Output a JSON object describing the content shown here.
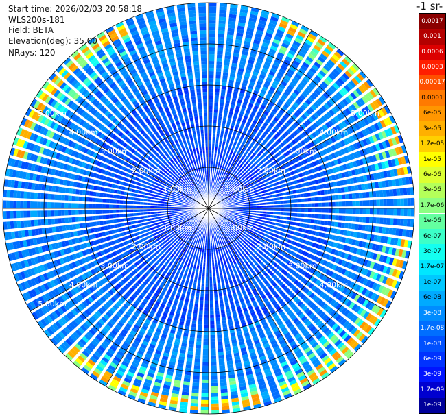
{
  "header": {
    "start_time": "Start time: 2026/02/03 20:58:18",
    "instrument": "WLS200s-181",
    "field": "Field: BETA",
    "elevation": "Elevation(deg): 35.00",
    "nrays": "NRays: 120"
  },
  "colorbar": {
    "units_label": "-1 sr-",
    "labels": [
      "0.0017",
      "0.001",
      "0.0006",
      "0.0003",
      "0.00017",
      "0.0001",
      "6e-05",
      "3e-05",
      "1.7e-05",
      "1e-05",
      "6e-06",
      "3e-06",
      "1.7e-06",
      "1e-06",
      "6e-07",
      "3e-07",
      "1.7e-07",
      "1e-07",
      "6e-08",
      "3e-08",
      "1.7e-08",
      "1e-08",
      "6e-09",
      "3e-09",
      "1.7e-09",
      "1e-09"
    ],
    "colors": [
      "#8b0000",
      "#b40000",
      "#dc0000",
      "#ff1e00",
      "#ff5000",
      "#ff7a00",
      "#ff9600",
      "#ffb000",
      "#ffd000",
      "#ffff00",
      "#dcff32",
      "#b4ff5a",
      "#8cff82",
      "#64ffa0",
      "#3cffc8",
      "#14fff0",
      "#00e6ff",
      "#00c8ff",
      "#00aaff",
      "#008cff",
      "#006eff",
      "#0050ff",
      "#0032ff",
      "#0014ff",
      "#0000d0",
      "#00009a"
    ]
  },
  "chart_data": {
    "type": "heatmap",
    "subtype": "polar PPI scan",
    "ring_labels": [
      "1.00km",
      "2.00km",
      "3.00km",
      "4.00km",
      "5.00km"
    ],
    "range_rings_km": [
      1,
      2,
      3,
      4,
      5
    ],
    "max_range_km": 5.0,
    "n_rays": 120,
    "elevation_deg": 35.0,
    "field": "BETA",
    "color_scale": "log",
    "value_range": [
      1e-09,
      0.0017
    ],
    "dominant_level": "1e-08 to 6e-08",
    "high_band": {
      "range_km": [
        4.65,
        4.95
      ],
      "peak_value": "3e-05",
      "sectors": [
        "north-west",
        "north-east",
        "south-east",
        "south"
      ]
    }
  }
}
